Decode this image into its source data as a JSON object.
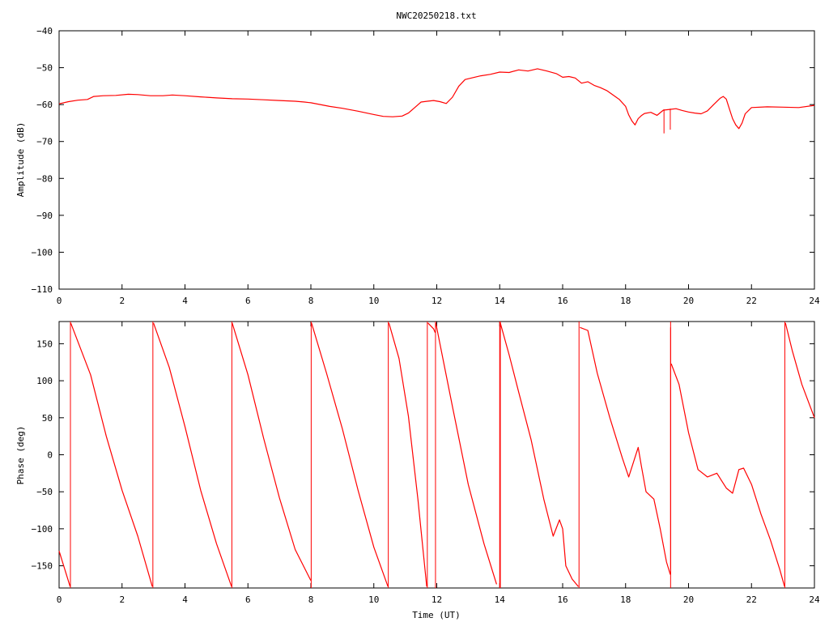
{
  "title": "NWC20250218.txt",
  "colors": {
    "series": "#ff0000",
    "axis": "#000000",
    "background": "#ffffff"
  },
  "chart_data": [
    {
      "type": "line",
      "title": "NWC20250218.txt",
      "xlabel": "",
      "ylabel": "Amplitude (dB)",
      "xlim": [
        0,
        24
      ],
      "ylim": [
        -110,
        -40
      ],
      "xticks": [
        0,
        2,
        4,
        6,
        8,
        10,
        12,
        14,
        16,
        18,
        20,
        22,
        24
      ],
      "yticks": [
        -110,
        -100,
        -90,
        -80,
        -70,
        -60,
        -50,
        -40
      ],
      "xtick_labels": [
        "0",
        "2",
        "4",
        "6",
        "8",
        "10",
        "12",
        "14",
        "16",
        "18",
        "20",
        "22",
        "24"
      ],
      "ytick_labels": [
        "−110",
        "−100",
        "−90",
        "−80",
        "−70",
        "−60",
        "−50",
        "−40"
      ],
      "grid": false,
      "series": [
        {
          "x": [
            0,
            0.3,
            0.6,
            0.9,
            1.1,
            1.4,
            1.8,
            2.2,
            2.5,
            2.9,
            3.3,
            3.6,
            4,
            4.5,
            5,
            5.5,
            6,
            6.5,
            7,
            7.5,
            7.8,
            8,
            8.3,
            8.6,
            9,
            9.5,
            10,
            10.3,
            10.6,
            10.9,
            11.1,
            11.3,
            11.5,
            11.7,
            11.9,
            12.1,
            12.3,
            12.5,
            12.7,
            12.9,
            13.1,
            13.4,
            13.7,
            14,
            14.3,
            14.6,
            14.9,
            15.2,
            15.5,
            15.8,
            16,
            16.2,
            16.4,
            16.6,
            16.8,
            17,
            17.2,
            17.4,
            17.6,
            17.8,
            18,
            18.1,
            18.2,
            18.3,
            18.4,
            18.5,
            18.6,
            18.8,
            19,
            19.2,
            19.4,
            19.6,
            19.8,
            20,
            20.2,
            20.4,
            20.6,
            20.8,
            21,
            21.1,
            21.2,
            21.3,
            21.4,
            21.5,
            21.6,
            21.7,
            21.8,
            22,
            22.5,
            23,
            23.5,
            24
          ],
          "y": [
            -59.8,
            -59.2,
            -58.8,
            -58.6,
            -57.8,
            -57.6,
            -57.5,
            -57.2,
            -57.3,
            -57.6,
            -57.6,
            -57.4,
            -57.6,
            -57.9,
            -58.2,
            -58.4,
            -58.5,
            -58.7,
            -58.9,
            -59.1,
            -59.3,
            -59.5,
            -60,
            -60.5,
            -61,
            -61.8,
            -62.7,
            -63.2,
            -63.3,
            -63.1,
            -62.3,
            -60.8,
            -59.3,
            -59.1,
            -58.9,
            -59.2,
            -59.7,
            -58,
            -55,
            -53.2,
            -52.8,
            -52.2,
            -51.8,
            -51.2,
            -51.3,
            -50.6,
            -50.9,
            -50.3,
            -50.9,
            -51.6,
            -52.6,
            -52.4,
            -52.8,
            -54.2,
            -53.8,
            -54.8,
            -55.4,
            -56.2,
            -57.4,
            -58.6,
            -60.5,
            -62.8,
            -64.4,
            -65.5,
            -63.8,
            -63,
            -62.4,
            -62.1,
            -62.9,
            -61.5,
            -61.3,
            -61.1,
            -61.6,
            -62,
            -62.3,
            -62.5,
            -61.7,
            -60,
            -58.3,
            -57.8,
            -58.5,
            -61.2,
            -63.8,
            -65.5,
            -66.5,
            -65,
            -62.5,
            -60.8,
            -60.6,
            -60.7,
            -60.8,
            -60.2
          ],
          "spikes": [
            {
              "x": 19.22,
              "y_top": -61.3,
              "y_bottom": -67.8
            },
            {
              "x": 19.42,
              "y_top": -61.1,
              "y_bottom": -66.8
            }
          ]
        }
      ]
    },
    {
      "type": "line",
      "title": "",
      "xlabel": "Time (UT)",
      "ylabel": "Phase (deg)",
      "xlim": [
        0,
        24
      ],
      "ylim": [
        -180,
        180
      ],
      "xticks": [
        0,
        2,
        4,
        6,
        8,
        10,
        12,
        14,
        16,
        18,
        20,
        22,
        24
      ],
      "yticks": [
        -150,
        -100,
        -50,
        0,
        50,
        100,
        150
      ],
      "xtick_labels": [
        "0",
        "2",
        "4",
        "6",
        "8",
        "10",
        "12",
        "14",
        "16",
        "18",
        "20",
        "22",
        "24"
      ],
      "ytick_labels": [
        "−150",
        "−100",
        "−50",
        "0",
        "50",
        "100",
        "150"
      ],
      "grid": false,
      "series": [
        {
          "x": [
            0,
            0.35
          ],
          "y": [
            -130,
            -178
          ]
        },
        {
          "x": [
            0.37,
            1,
            1.5,
            2,
            2.5,
            2.96
          ],
          "y": [
            178,
            108,
            25,
            -48,
            -110,
            -178
          ]
        },
        {
          "x": [
            3.0,
            3.5,
            4,
            4.5,
            5,
            5.48
          ],
          "y": [
            178,
            118,
            38,
            -48,
            -120,
            -178
          ]
        },
        {
          "x": [
            5.5,
            6,
            6.5,
            7,
            7.5,
            8.0
          ],
          "y": [
            178,
            108,
            22,
            -58,
            -128,
            -170
          ]
        },
        {
          "x": [
            8.02,
            8.5,
            9,
            9.5,
            10,
            10.45
          ],
          "y": [
            178,
            110,
            35,
            -48,
            -125,
            -178
          ]
        },
        {
          "x": [
            10.48,
            10.8,
            11.1,
            11.4,
            11.68
          ],
          "y": [
            178,
            130,
            52,
            -60,
            -178
          ]
        },
        {
          "x": [
            11.72,
            11.9,
            11.95
          ],
          "y": [
            178,
            170,
            165
          ]
        },
        {
          "x": [
            11.97,
            12.5,
            13,
            13.5,
            13.9
          ],
          "y": [
            178,
            65,
            -40,
            -120,
            -175
          ]
        },
        {
          "x": [
            14.02,
            14.3,
            14.6,
            15,
            15.4,
            15.7,
            15.9,
            16,
            16.1,
            16.3,
            16.5
          ],
          "y": [
            178,
            135,
            85,
            20,
            -60,
            -110,
            -88,
            -100,
            -150,
            -168,
            -178
          ]
        },
        {
          "x": [
            16.55,
            16.8,
            17.1,
            17.5,
            17.9,
            18.1,
            18.25,
            18.4,
            18.5,
            18.65,
            18.9,
            19.1,
            19.3,
            19.42
          ],
          "y": [
            172,
            168,
            110,
            50,
            -5,
            -30,
            -10,
            10,
            -15,
            -50,
            -60,
            -100,
            -145,
            -162
          ]
        },
        {
          "x": [
            19.45,
            19.7,
            20,
            20.3,
            20.6,
            20.9,
            21.2,
            21.4,
            21.6,
            21.75,
            22,
            22.3,
            22.6,
            22.9,
            23.05
          ],
          "y": [
            123,
            95,
            30,
            -20,
            -30,
            -25,
            -45,
            -52,
            -20,
            -18,
            -40,
            -80,
            -115,
            -155,
            -178
          ]
        },
        {
          "x": [
            23.08,
            23.3,
            23.6,
            24
          ],
          "y": [
            178,
            140,
            95,
            50
          ]
        }
      ],
      "wrap_lines": [
        0.36,
        2.98,
        5.49,
        8.01,
        10.46,
        11.7,
        11.96,
        14.0,
        14.02,
        16.52,
        19.43,
        23.06
      ],
      "partial_spike": {
        "x": 19.43,
        "y_top": 172,
        "y_bottom": -162
      }
    }
  ]
}
